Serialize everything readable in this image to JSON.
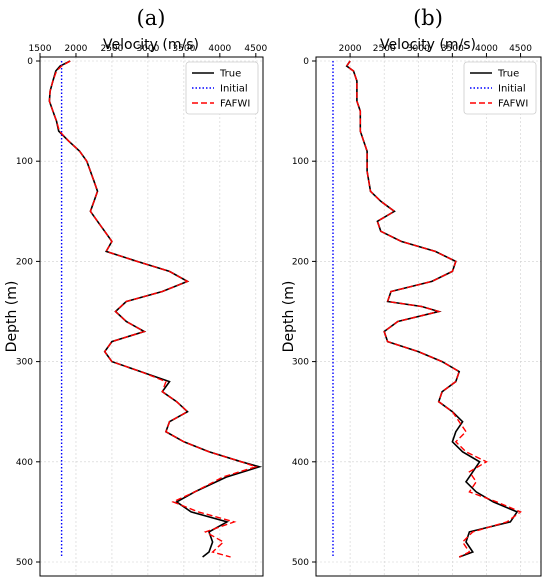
{
  "chart_data": [
    {
      "type": "line",
      "panel_label": "(a)",
      "xlabel": "Velocity (m/s)",
      "ylabel": "Depth (m)",
      "x_axis_position": "top",
      "y_inverted": true,
      "xlim": [
        1500,
        4600
      ],
      "ylim": [
        0,
        500
      ],
      "xticks": [
        1500,
        2000,
        2500,
        3000,
        3500,
        4000,
        4500
      ],
      "yticks": [
        0,
        100,
        200,
        300,
        400,
        500
      ],
      "grid": true,
      "legend": "top-right",
      "series": [
        {
          "name": "True",
          "color": "#000000",
          "dash": "solid",
          "points": [
            [
              1920,
              0
            ],
            [
              1780,
              5
            ],
            [
              1720,
              10
            ],
            [
              1680,
              20
            ],
            [
              1640,
              30
            ],
            [
              1630,
              40
            ],
            [
              1680,
              50
            ],
            [
              1730,
              60
            ],
            [
              1760,
              70
            ],
            [
              1900,
              80
            ],
            [
              2050,
              90
            ],
            [
              2150,
              100
            ],
            [
              2200,
              110
            ],
            [
              2250,
              120
            ],
            [
              2300,
              130
            ],
            [
              2250,
              140
            ],
            [
              2200,
              150
            ],
            [
              2300,
              160
            ],
            [
              2400,
              170
            ],
            [
              2500,
              180
            ],
            [
              2420,
              190
            ],
            [
              2850,
              200
            ],
            [
              3300,
              210
            ],
            [
              3550,
              220
            ],
            [
              3200,
              230
            ],
            [
              2700,
              240
            ],
            [
              2550,
              250
            ],
            [
              2700,
              260
            ],
            [
              2950,
              270
            ],
            [
              2500,
              280
            ],
            [
              2400,
              290
            ],
            [
              2500,
              300
            ],
            [
              2900,
              310
            ],
            [
              3300,
              320
            ],
            [
              3200,
              330
            ],
            [
              3400,
              340
            ],
            [
              3550,
              350
            ],
            [
              3300,
              360
            ],
            [
              3250,
              370
            ],
            [
              3500,
              380
            ],
            [
              3850,
              390
            ],
            [
              4300,
              400
            ],
            [
              4550,
              405
            ],
            [
              4100,
              415
            ],
            [
              3650,
              430
            ],
            [
              3400,
              440
            ],
            [
              3600,
              450
            ],
            [
              4100,
              460
            ],
            [
              3850,
              470
            ],
            [
              3900,
              480
            ],
            [
              3850,
              490
            ],
            [
              3760,
              495
            ]
          ]
        },
        {
          "name": "Initial",
          "color": "#0000ff",
          "dash": "dotted",
          "points": [
            [
              1800,
              0
            ],
            [
              1800,
              100
            ],
            [
              1800,
              200
            ],
            [
              1800,
              300
            ],
            [
              1800,
              400
            ],
            [
              1800,
              495
            ]
          ]
        },
        {
          "name": "FAFWI",
          "color": "#ff0000",
          "dash": "dashed",
          "points": [
            [
              1920,
              0
            ],
            [
              1800,
              5
            ],
            [
              1730,
              10
            ],
            [
              1680,
              20
            ],
            [
              1640,
              30
            ],
            [
              1630,
              40
            ],
            [
              1680,
              50
            ],
            [
              1730,
              60
            ],
            [
              1770,
              70
            ],
            [
              1900,
              80
            ],
            [
              2050,
              90
            ],
            [
              2150,
              100
            ],
            [
              2200,
              110
            ],
            [
              2250,
              120
            ],
            [
              2300,
              130
            ],
            [
              2250,
              140
            ],
            [
              2200,
              150
            ],
            [
              2300,
              160
            ],
            [
              2400,
              170
            ],
            [
              2500,
              180
            ],
            [
              2420,
              190
            ],
            [
              2850,
              200
            ],
            [
              3300,
              210
            ],
            [
              3550,
              220
            ],
            [
              3200,
              230
            ],
            [
              2700,
              240
            ],
            [
              2550,
              250
            ],
            [
              2700,
              260
            ],
            [
              2950,
              270
            ],
            [
              2500,
              280
            ],
            [
              2400,
              290
            ],
            [
              2500,
              300
            ],
            [
              2900,
              310
            ],
            [
              3250,
              320
            ],
            [
              3200,
              330
            ],
            [
              3400,
              340
            ],
            [
              3550,
              350
            ],
            [
              3300,
              360
            ],
            [
              3250,
              370
            ],
            [
              3500,
              380
            ],
            [
              3850,
              390
            ],
            [
              4300,
              400
            ],
            [
              4500,
              405
            ],
            [
              4050,
              415
            ],
            [
              3650,
              430
            ],
            [
              3350,
              440
            ],
            [
              3700,
              450
            ],
            [
              4200,
              460
            ],
            [
              3800,
              470
            ],
            [
              4050,
              480
            ],
            [
              3900,
              490
            ],
            [
              4150,
              495
            ]
          ]
        }
      ]
    },
    {
      "type": "line",
      "panel_label": "(b)",
      "xlabel": "Velocity (m/s)",
      "ylabel": "Depth (m)",
      "x_axis_position": "top",
      "y_inverted": true,
      "xlim": [
        1500,
        4800
      ],
      "ylim": [
        0,
        500
      ],
      "xticks": [
        2000,
        2500,
        3000,
        3500,
        4000,
        4500
      ],
      "yticks": [
        0,
        100,
        200,
        300,
        400,
        500
      ],
      "grid": true,
      "legend": "top-right",
      "series": [
        {
          "name": "True",
          "color": "#000000",
          "dash": "solid",
          "points": [
            [
              2000,
              0
            ],
            [
              1950,
              5
            ],
            [
              2050,
              10
            ],
            [
              2100,
              20
            ],
            [
              2100,
              40
            ],
            [
              2150,
              50
            ],
            [
              2150,
              70
            ],
            [
              2250,
              90
            ],
            [
              2250,
              110
            ],
            [
              2300,
              130
            ],
            [
              2450,
              140
            ],
            [
              2650,
              150
            ],
            [
              2400,
              160
            ],
            [
              2450,
              170
            ],
            [
              2750,
              180
            ],
            [
              3250,
              190
            ],
            [
              3550,
              200
            ],
            [
              3500,
              210
            ],
            [
              3200,
              220
            ],
            [
              2600,
              230
            ],
            [
              2550,
              240
            ],
            [
              3050,
              245
            ],
            [
              3300,
              250
            ],
            [
              2700,
              260
            ],
            [
              2500,
              270
            ],
            [
              2550,
              280
            ],
            [
              3000,
              290
            ],
            [
              3350,
              300
            ],
            [
              3600,
              310
            ],
            [
              3550,
              320
            ],
            [
              3350,
              330
            ],
            [
              3300,
              340
            ],
            [
              3500,
              350
            ],
            [
              3650,
              360
            ],
            [
              3550,
              370
            ],
            [
              3500,
              380
            ],
            [
              3650,
              390
            ],
            [
              3900,
              400
            ],
            [
              3800,
              410
            ],
            [
              3700,
              420
            ],
            [
              3850,
              430
            ],
            [
              4100,
              440
            ],
            [
              4450,
              450
            ],
            [
              4350,
              460
            ],
            [
              3750,
              470
            ],
            [
              3700,
              480
            ],
            [
              3800,
              490
            ],
            [
              3600,
              495
            ]
          ]
        },
        {
          "name": "Initial",
          "color": "#0000ff",
          "dash": "dotted",
          "points": [
            [
              1750,
              0
            ],
            [
              1750,
              100
            ],
            [
              1750,
              200
            ],
            [
              1750,
              300
            ],
            [
              1750,
              400
            ],
            [
              1750,
              495
            ]
          ]
        },
        {
          "name": "FAFWI",
          "color": "#ff0000",
          "dash": "dashed",
          "points": [
            [
              2000,
              0
            ],
            [
              1950,
              5
            ],
            [
              2050,
              10
            ],
            [
              2100,
              20
            ],
            [
              2100,
              40
            ],
            [
              2150,
              50
            ],
            [
              2150,
              70
            ],
            [
              2250,
              90
            ],
            [
              2250,
              110
            ],
            [
              2300,
              130
            ],
            [
              2450,
              140
            ],
            [
              2650,
              150
            ],
            [
              2400,
              160
            ],
            [
              2450,
              170
            ],
            [
              2750,
              180
            ],
            [
              3250,
              190
            ],
            [
              3550,
              200
            ],
            [
              3500,
              210
            ],
            [
              3200,
              220
            ],
            [
              2600,
              230
            ],
            [
              2550,
              240
            ],
            [
              3050,
              245
            ],
            [
              3300,
              250
            ],
            [
              2700,
              260
            ],
            [
              2500,
              270
            ],
            [
              2550,
              280
            ],
            [
              3000,
              290
            ],
            [
              3350,
              300
            ],
            [
              3600,
              310
            ],
            [
              3550,
              320
            ],
            [
              3350,
              330
            ],
            [
              3300,
              340
            ],
            [
              3500,
              350
            ],
            [
              3600,
              360
            ],
            [
              3700,
              370
            ],
            [
              3550,
              380
            ],
            [
              3700,
              390
            ],
            [
              4000,
              400
            ],
            [
              3750,
              410
            ],
            [
              3850,
              420
            ],
            [
              3750,
              430
            ],
            [
              4150,
              440
            ],
            [
              4500,
              450
            ],
            [
              4300,
              460
            ],
            [
              3800,
              470
            ],
            [
              3650,
              480
            ],
            [
              3750,
              490
            ],
            [
              3600,
              495
            ]
          ]
        }
      ]
    }
  ]
}
